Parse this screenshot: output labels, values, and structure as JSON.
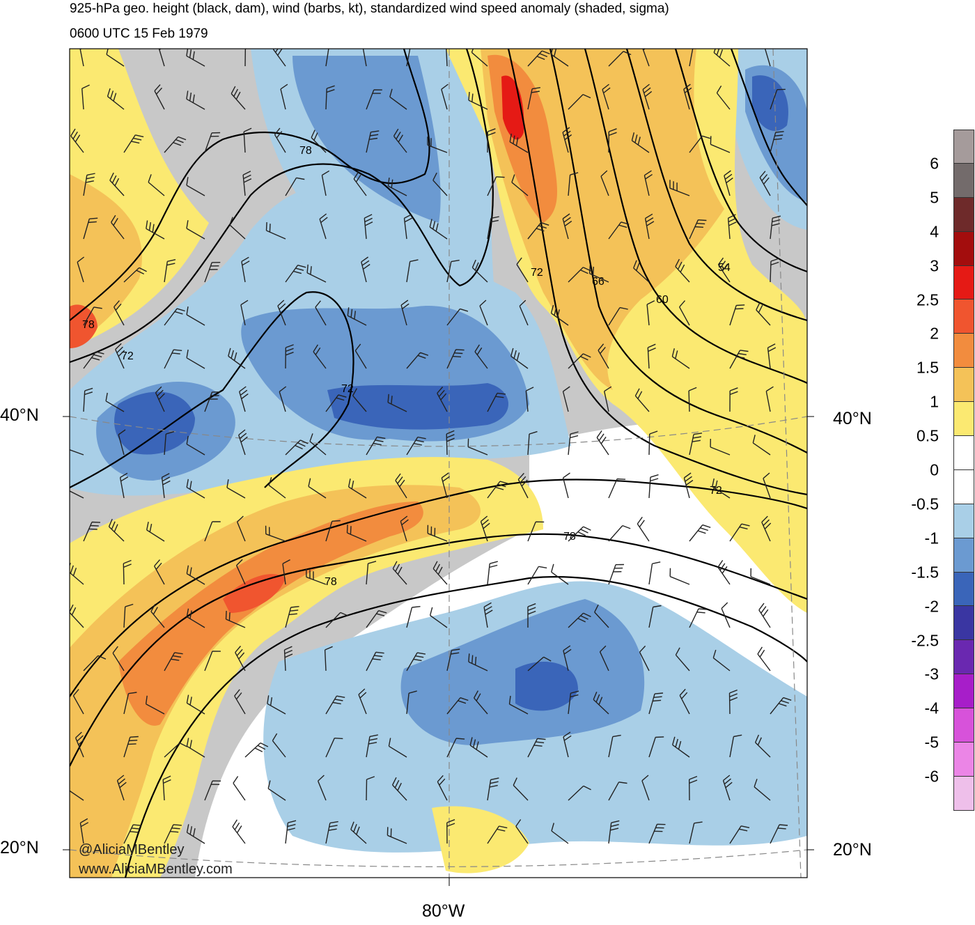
{
  "header": {
    "title": "925-hPa geo. height (black, dam), wind (barbs, kt), standardized wind speed anomaly (shaded, sigma)",
    "valid_time": "0600 UTC 15 Feb 1979"
  },
  "map": {
    "lat_labels": {
      "lat40_left": "40°N",
      "lat40_right": "40°N",
      "lat20_left": "20°N",
      "lat20_right": "20°N"
    },
    "lon_labels": {
      "lon80": "80°W"
    },
    "contour_labels": [
      "78",
      "78",
      "72",
      "72",
      "72",
      "66",
      "60",
      "54",
      "72",
      "78",
      "78"
    ],
    "credits": {
      "handle": "@AliciaMBentley",
      "site": "www.AliciaMBentley.com"
    }
  },
  "colorbar": {
    "colors": [
      "#a59b9b",
      "#736b6b",
      "#6e2a2a",
      "#a30d0d",
      "#e51a15",
      "#f0552f",
      "#f28c3e",
      "#f4c258",
      "#fbe971",
      "#ffffff",
      "#ffffff",
      "#a9cfe7",
      "#6b9ad1",
      "#3a65b9",
      "#3a36a2",
      "#6a28b0",
      "#a71ec9",
      "#d752da",
      "#eb85e6",
      "#eebfea"
    ],
    "ticks": [
      "6",
      "5",
      "4",
      "3",
      "2.5",
      "2",
      "1.5",
      "1",
      "0.5",
      "0",
      "-0.5",
      "-1",
      "-1.5",
      "-2",
      "-2.5",
      "-3",
      "-4",
      "-5",
      "-6"
    ]
  }
}
